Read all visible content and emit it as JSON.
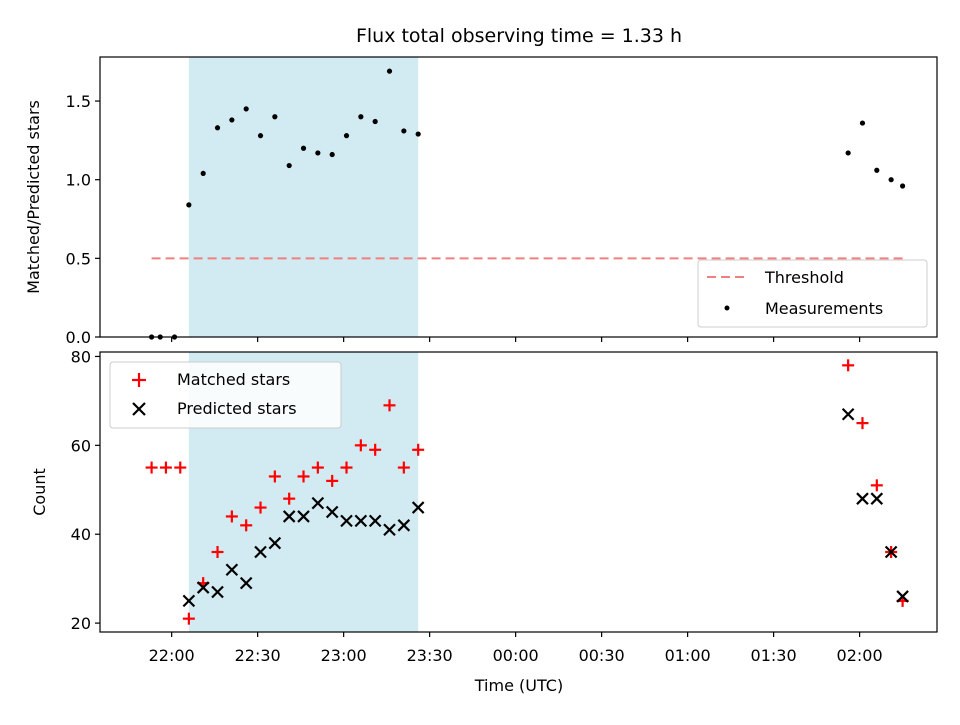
{
  "chart_data": [
    {
      "type": "scatter",
      "title": "Flux total observing time = 1.33 h",
      "xlabel": "",
      "ylabel": "Matched/Predicted stars",
      "ylim": [
        0,
        1.78
      ],
      "yticks": [
        "0.0",
        "0.5",
        "1.0",
        "1.5"
      ],
      "legend_placement": "lower-right",
      "shaded_interval": {
        "start": "22:06",
        "end": "23:26",
        "color": "#add8e6"
      },
      "threshold": {
        "name": "Threshold",
        "value": 0.5,
        "start": "21:53",
        "end": "02:15",
        "color": "#f08080"
      },
      "series": [
        {
          "name": "Measurements",
          "color": "#000000",
          "points": [
            [
              "21:53",
              0.0
            ],
            [
              "21:56",
              0.0
            ],
            [
              "22:01",
              0.0
            ],
            [
              "22:06",
              0.84
            ],
            [
              "22:11",
              1.04
            ],
            [
              "22:16",
              1.33
            ],
            [
              "22:21",
              1.38
            ],
            [
              "22:26",
              1.45
            ],
            [
              "22:31",
              1.28
            ],
            [
              "22:36",
              1.4
            ],
            [
              "22:41",
              1.09
            ],
            [
              "22:46",
              1.2
            ],
            [
              "22:51",
              1.17
            ],
            [
              "22:56",
              1.16
            ],
            [
              "23:01",
              1.28
            ],
            [
              "23:06",
              1.4
            ],
            [
              "23:11",
              1.37
            ],
            [
              "23:16",
              1.69
            ],
            [
              "23:21",
              1.31
            ],
            [
              "23:26",
              1.29
            ],
            [
              "01:56",
              1.17
            ],
            [
              "02:01",
              1.36
            ],
            [
              "02:06",
              1.06
            ],
            [
              "02:11",
              1.0
            ],
            [
              "02:15",
              0.96
            ]
          ]
        }
      ]
    },
    {
      "type": "scatter",
      "title": "",
      "xlabel": "Time (UTC)",
      "ylabel": "Count",
      "ylim": [
        18,
        81
      ],
      "yticks": [
        "20",
        "40",
        "60",
        "80"
      ],
      "xlim": [
        "21:35",
        "02:27"
      ],
      "xticks": [
        "22:00",
        "22:30",
        "23:00",
        "23:30",
        "00:00",
        "00:30",
        "01:00",
        "01:30",
        "02:00"
      ],
      "legend_placement": "upper-left",
      "shaded_interval": {
        "start": "22:06",
        "end": "23:26",
        "color": "#add8e6"
      },
      "series": [
        {
          "name": "Matched stars",
          "marker": "plus",
          "color": "#ff0000",
          "points": [
            [
              "21:53",
              55
            ],
            [
              "21:58",
              55
            ],
            [
              "22:03",
              55
            ],
            [
              "22:06",
              21
            ],
            [
              "22:11",
              29
            ],
            [
              "22:16",
              36
            ],
            [
              "22:21",
              44
            ],
            [
              "22:26",
              42
            ],
            [
              "22:31",
              46
            ],
            [
              "22:36",
              53
            ],
            [
              "22:41",
              48
            ],
            [
              "22:46",
              53
            ],
            [
              "22:51",
              55
            ],
            [
              "22:56",
              52
            ],
            [
              "23:01",
              55
            ],
            [
              "23:06",
              60
            ],
            [
              "23:11",
              59
            ],
            [
              "23:16",
              69
            ],
            [
              "23:21",
              55
            ],
            [
              "23:26",
              59
            ],
            [
              "01:56",
              78
            ],
            [
              "02:01",
              65
            ],
            [
              "02:06",
              51
            ],
            [
              "02:11",
              36
            ],
            [
              "02:15",
              25
            ]
          ]
        },
        {
          "name": "Predicted stars",
          "marker": "x",
          "color": "#000000",
          "points": [
            [
              "22:06",
              25
            ],
            [
              "22:11",
              28
            ],
            [
              "22:16",
              27
            ],
            [
              "22:21",
              32
            ],
            [
              "22:26",
              29
            ],
            [
              "22:31",
              36
            ],
            [
              "22:36",
              38
            ],
            [
              "22:41",
              44
            ],
            [
              "22:46",
              44
            ],
            [
              "22:51",
              47
            ],
            [
              "22:56",
              45
            ],
            [
              "23:01",
              43
            ],
            [
              "23:06",
              43
            ],
            [
              "23:11",
              43
            ],
            [
              "23:16",
              41
            ],
            [
              "23:21",
              42
            ],
            [
              "23:26",
              46
            ],
            [
              "01:56",
              67
            ],
            [
              "02:01",
              48
            ],
            [
              "02:06",
              48
            ],
            [
              "02:11",
              36
            ],
            [
              "02:15",
              26
            ]
          ]
        }
      ]
    }
  ]
}
